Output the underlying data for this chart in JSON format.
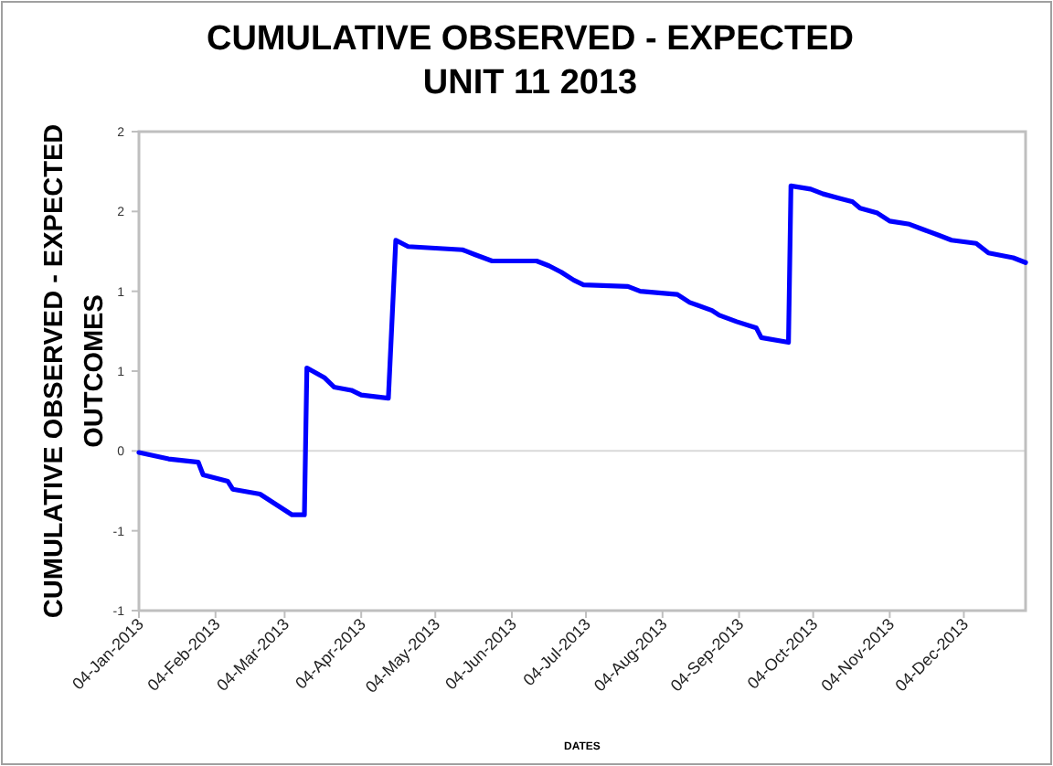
{
  "chart_data": {
    "type": "line",
    "title": "CUMULATIVE OBSERVED - EXPECTED\nUNIT 11 2013",
    "xlabel": "DATES",
    "ylabel": "CUMULATIVE OBSERVED - EXPECTED\nOUTCOMES",
    "x": [
      "2013-01-04",
      "2013-01-16",
      "2013-01-28",
      "2013-01-30",
      "2013-02-09",
      "2013-02-11",
      "2013-02-22",
      "2013-02-27",
      "2013-03-07",
      "2013-03-12",
      "2013-03-13",
      "2013-03-20",
      "2013-03-24",
      "2013-03-31",
      "2013-04-04",
      "2013-04-15",
      "2013-04-18",
      "2013-04-23",
      "2013-05-15",
      "2013-05-20",
      "2013-05-27",
      "2013-06-14",
      "2013-06-19",
      "2013-06-24",
      "2013-06-29",
      "2013-07-03",
      "2013-07-21",
      "2013-07-26",
      "2013-08-10",
      "2013-08-15",
      "2013-08-24",
      "2013-08-27",
      "2013-09-03",
      "2013-09-11",
      "2013-09-13",
      "2013-09-24",
      "2013-09-25",
      "2013-10-03",
      "2013-10-08",
      "2013-10-15",
      "2013-10-20",
      "2013-10-23",
      "2013-10-30",
      "2013-11-04",
      "2013-11-12",
      "2013-11-17",
      "2013-11-24",
      "2013-11-29",
      "2013-12-09",
      "2013-12-14",
      "2013-12-24",
      "2013-12-29"
    ],
    "series": [
      {
        "color": "#0000ff",
        "values": [
          -0.01,
          -0.05,
          -0.07,
          -0.15,
          -0.19,
          -0.24,
          -0.27,
          -0.32,
          -0.4,
          -0.4,
          0.52,
          0.46,
          0.4,
          0.38,
          0.35,
          0.33,
          1.32,
          1.28,
          1.26,
          1.23,
          1.19,
          1.19,
          1.16,
          1.12,
          1.07,
          1.04,
          1.03,
          1.0,
          0.98,
          0.93,
          0.88,
          0.85,
          0.81,
          0.77,
          0.71,
          0.68,
          1.66,
          1.64,
          1.61,
          1.58,
          1.56,
          1.52,
          1.49,
          1.44,
          1.42,
          1.39,
          1.35,
          1.32,
          1.3,
          1.24,
          1.21,
          1.18
        ]
      }
    ],
    "xlim": [
      "2013-01-04",
      "2013-12-29"
    ],
    "xticks": [
      {
        "value": "2013-01-04",
        "label": "04-Jan-2013"
      },
      {
        "value": "2013-02-04",
        "label": "04-Feb-2013"
      },
      {
        "value": "2013-03-04",
        "label": "04-Mar-2013"
      },
      {
        "value": "2013-04-04",
        "label": "04-Apr-2013"
      },
      {
        "value": "2013-05-04",
        "label": "04-May-2013"
      },
      {
        "value": "2013-06-04",
        "label": "04-Jun-2013"
      },
      {
        "value": "2013-07-04",
        "label": "04-Jul-2013"
      },
      {
        "value": "2013-08-04",
        "label": "04-Aug-2013"
      },
      {
        "value": "2013-09-04",
        "label": "04-Sep-2013"
      },
      {
        "value": "2013-10-04",
        "label": "04-Oct-2013"
      },
      {
        "value": "2013-11-04",
        "label": "04-Nov-2013"
      },
      {
        "value": "2013-12-04",
        "label": "04-Dec-2013"
      }
    ],
    "ylim": [
      -1,
      2
    ],
    "yticks": [
      {
        "value": -1,
        "label": "-1"
      },
      {
        "value": -0.5,
        "label": "-1"
      },
      {
        "value": 0,
        "label": "0"
      },
      {
        "value": 0.5,
        "label": "1"
      },
      {
        "value": 1,
        "label": "1"
      },
      {
        "value": 1.5,
        "label": "2"
      },
      {
        "value": 2,
        "label": "2"
      }
    ],
    "ref_lines": [
      {
        "axis": "y",
        "value": 0,
        "color": "#d9d9d9"
      }
    ],
    "grid": false,
    "marker": "none",
    "line_style": "solid"
  }
}
